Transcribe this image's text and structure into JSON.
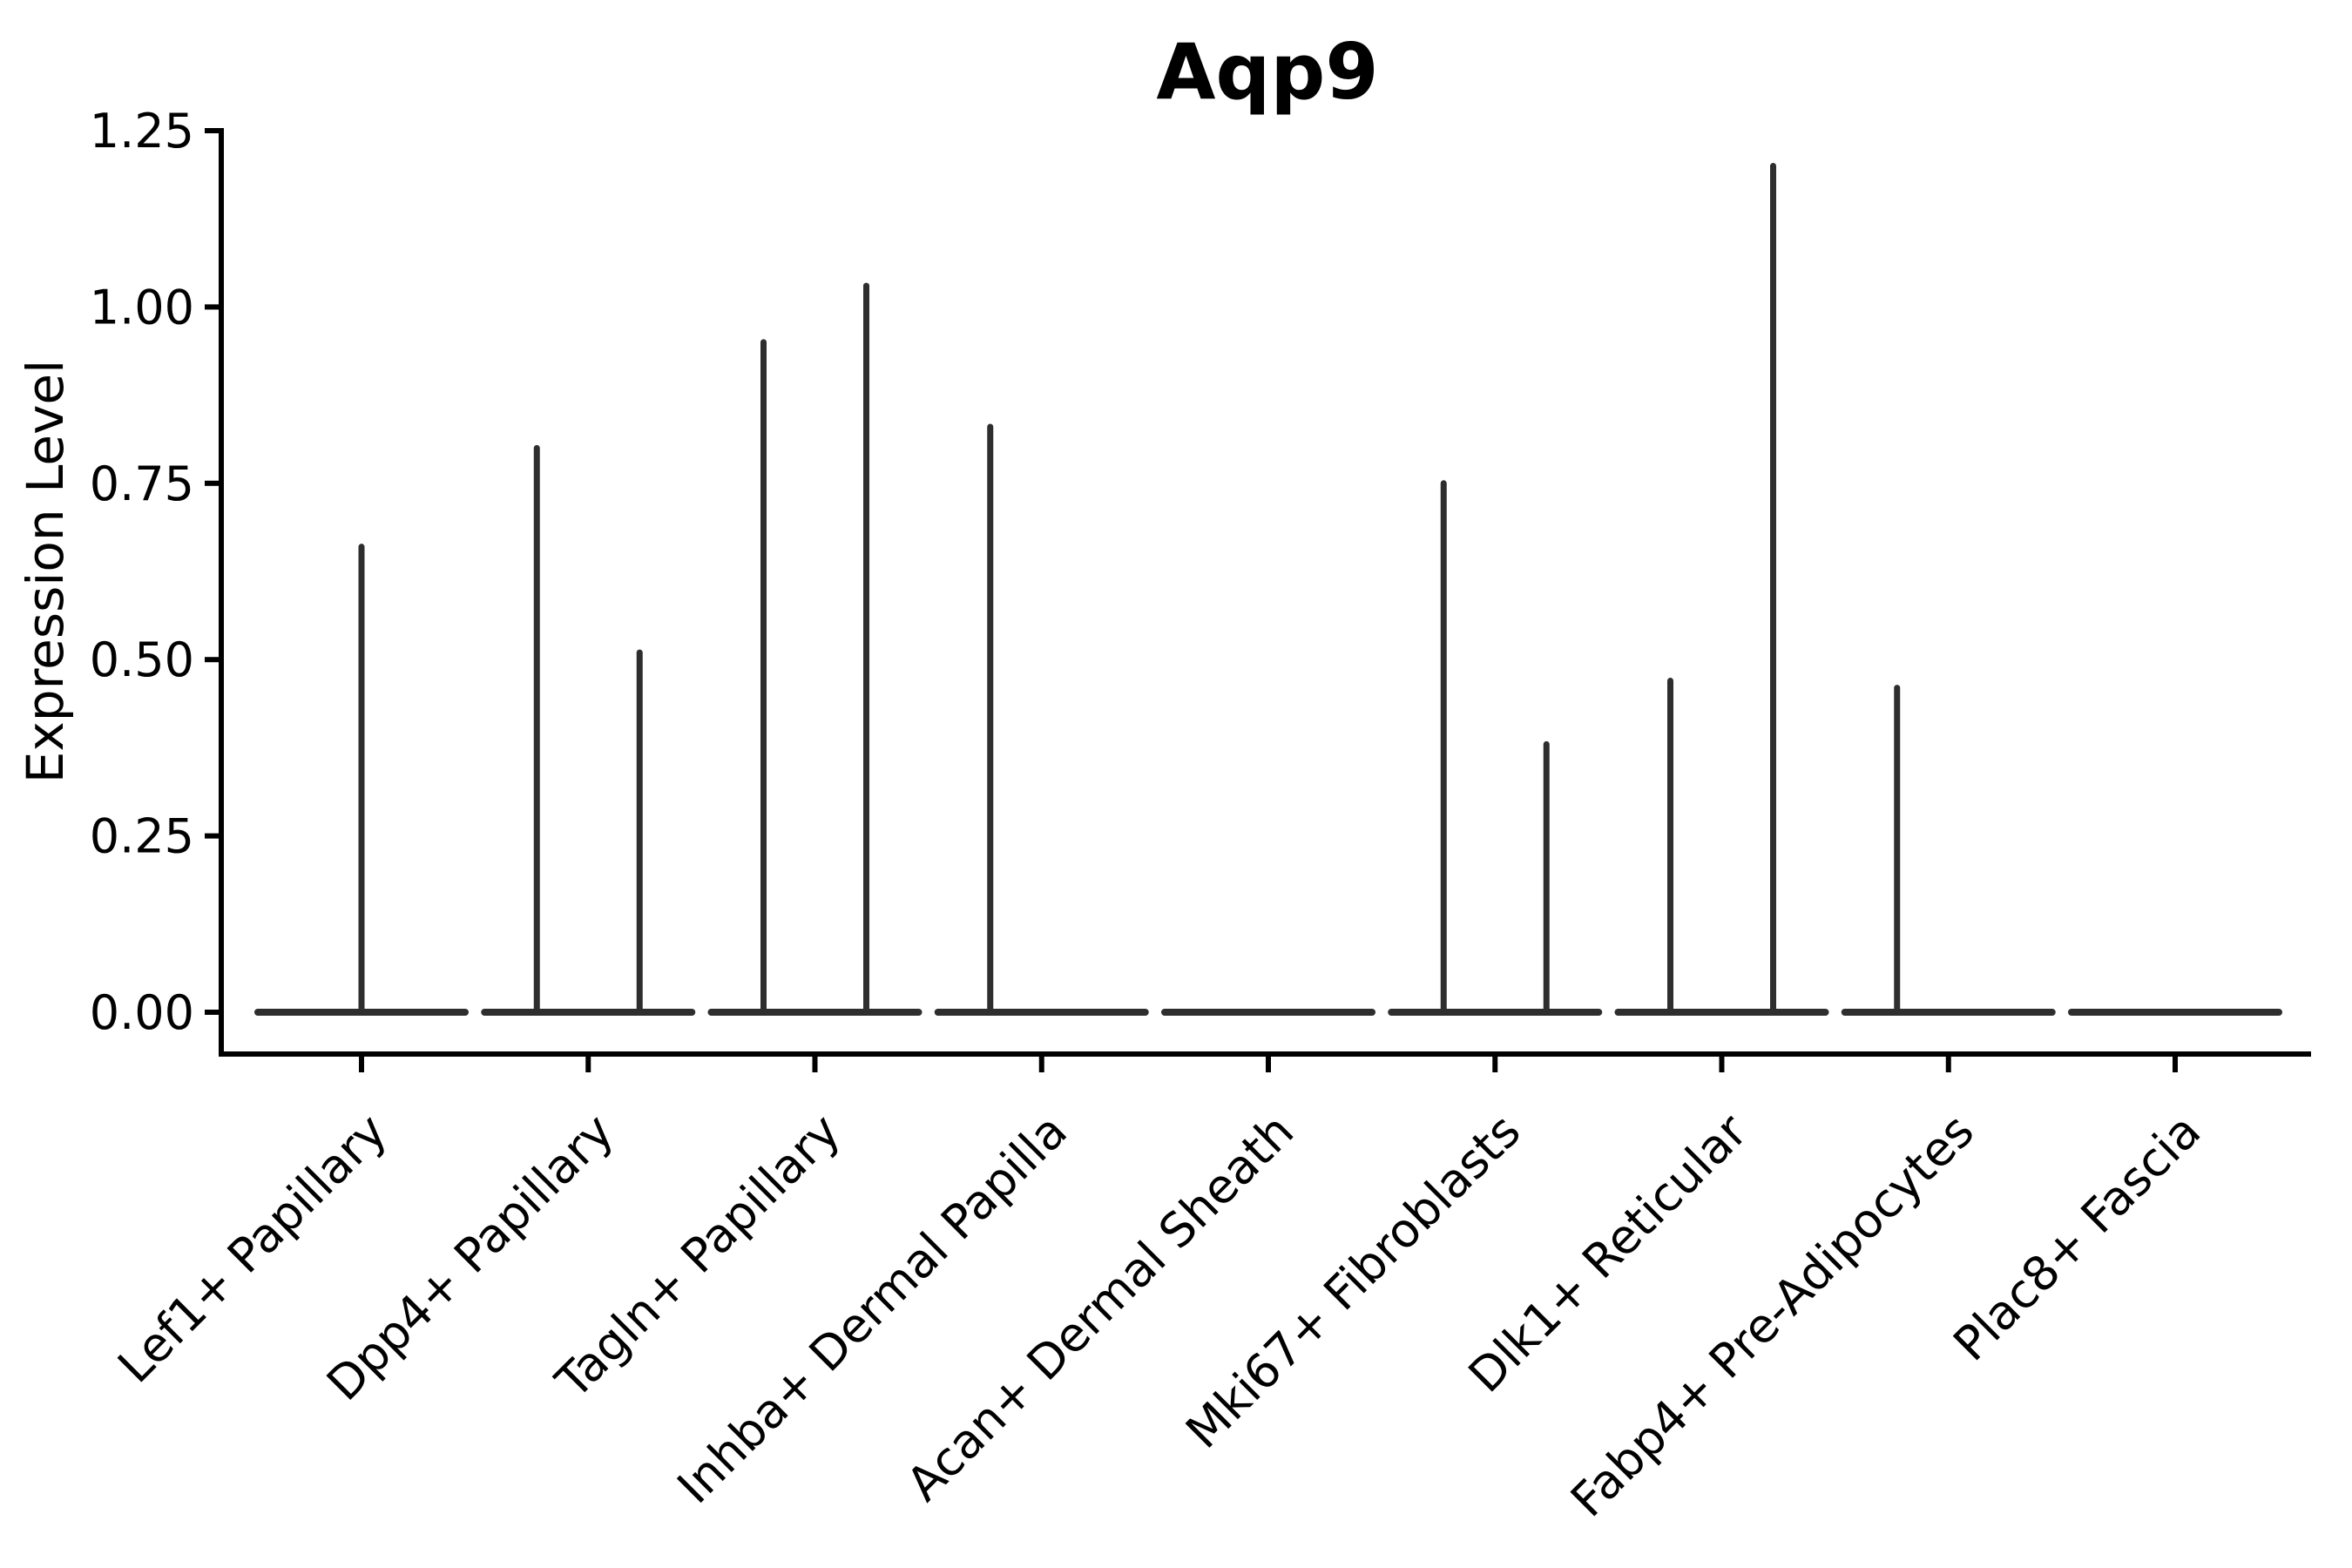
{
  "chart_data": {
    "type": "violin",
    "title": "Aqp9",
    "xlabel": "",
    "ylabel": "Expression Level",
    "ylim": [
      0,
      1.25
    ],
    "grid": false,
    "legend": false,
    "baseline_value": 0.0,
    "yticks": [
      {
        "label": "0.00",
        "value": 0.0
      },
      {
        "label": "0.25",
        "value": 0.25
      },
      {
        "label": "0.50",
        "value": 0.5
      },
      {
        "label": "0.75",
        "value": 0.75
      },
      {
        "label": "1.00",
        "value": 1.0
      },
      {
        "label": "1.25",
        "value": 1.25
      }
    ],
    "categories": [
      "Lef1+ Papillary",
      "Dpp4+ Papillary",
      "Tagln+ Papillary",
      "Inhba+ Dermal Papilla",
      "Acan+ Dermal Sheath",
      "Mki67+ Fibroblasts",
      "Dlk1+ Reticular",
      "Fabp4+ Pre-Adipocytes",
      "Plac8+ Fascia"
    ],
    "violins": [
      {
        "category": "Lef1+ Papillary",
        "spikes": [
          {
            "position": "full",
            "max": 0.66
          }
        ]
      },
      {
        "category": "Dpp4+ Papillary",
        "spikes": [
          {
            "position": "left",
            "max": 0.8
          },
          {
            "position": "right",
            "max": 0.51
          }
        ]
      },
      {
        "category": "Tagln+ Papillary",
        "spikes": [
          {
            "position": "left",
            "max": 0.95
          },
          {
            "position": "right",
            "max": 1.03
          }
        ]
      },
      {
        "category": "Inhba+ Dermal Papilla",
        "spikes": [
          {
            "position": "left",
            "max": 0.83
          }
        ]
      },
      {
        "category": "Acan+ Dermal Sheath",
        "spikes": []
      },
      {
        "category": "Mki67+ Fibroblasts",
        "spikes": [
          {
            "position": "left",
            "max": 0.75
          },
          {
            "position": "right",
            "max": 0.38
          }
        ]
      },
      {
        "category": "Dlk1+ Reticular",
        "spikes": [
          {
            "position": "left",
            "max": 0.47
          },
          {
            "position": "right",
            "max": 1.2
          }
        ]
      },
      {
        "category": "Fabp4+ Pre-Adipocytes",
        "spikes": [
          {
            "position": "left",
            "max": 0.46
          }
        ]
      },
      {
        "category": "Plac8+ Fascia",
        "spikes": []
      }
    ],
    "colors": {
      "violin_stroke": "#2e2e2e",
      "axis": "#000000",
      "text": "#000000",
      "background": "#ffffff"
    }
  }
}
